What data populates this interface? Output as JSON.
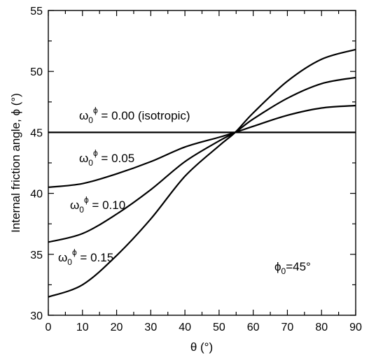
{
  "chart_data": {
    "type": "line",
    "xlabel": "θ (°)",
    "ylabel": "Internal friction angle, ϕ (°)",
    "xlim": [
      0,
      90
    ],
    "ylim": [
      30,
      55
    ],
    "xticks": [
      "0",
      "10",
      "20",
      "30",
      "40",
      "50",
      "60",
      "70",
      "80",
      "90"
    ],
    "yticks": [
      "30",
      "35",
      "40",
      "45",
      "50",
      "55"
    ],
    "grid": false,
    "legend": "none",
    "series": [
      {
        "name": "ω0ϕ = 0.00 (isotropic)",
        "x": [
          0,
          10,
          20,
          30,
          40,
          50,
          54.7,
          60,
          70,
          80,
          90
        ],
        "y": [
          45.0,
          45.0,
          45.0,
          45.0,
          45.0,
          45.0,
          45.0,
          45.0,
          45.0,
          45.0,
          45.0
        ]
      },
      {
        "name": "ω0ϕ = 0.05",
        "x": [
          0,
          10,
          20,
          30,
          40,
          50,
          54.7,
          60,
          70,
          80,
          90
        ],
        "y": [
          40.5,
          40.8,
          41.6,
          42.6,
          43.8,
          44.6,
          45.0,
          45.5,
          46.4,
          47.0,
          47.2
        ]
      },
      {
        "name": "ω0ϕ = 0.10",
        "x": [
          0,
          10,
          20,
          30,
          40,
          50,
          54.7,
          60,
          70,
          80,
          90
        ],
        "y": [
          36.0,
          36.7,
          38.3,
          40.3,
          42.6,
          44.3,
          45.0,
          46.1,
          47.8,
          49.0,
          49.5
        ]
      },
      {
        "name": "ω0ϕ = 0.15",
        "x": [
          0,
          10,
          20,
          30,
          40,
          50,
          54.7,
          60,
          70,
          80,
          90
        ],
        "y": [
          31.5,
          32.5,
          34.9,
          37.9,
          41.4,
          43.9,
          45.0,
          46.6,
          49.2,
          51.0,
          51.8
        ]
      }
    ],
    "annotations": {
      "iso": {
        "base": "ω",
        "sub": "0",
        "sup": "ϕ",
        "rest": " = 0.00 (isotropic)"
      },
      "s05": {
        "base": "ω",
        "sub": "0",
        "sup": "ϕ",
        "rest": " = 0.05"
      },
      "s10": {
        "base": "ω",
        "sub": "0",
        "sup": "ϕ",
        "rest": " = 0.10"
      },
      "s15": {
        "base": "ω",
        "sub": "0",
        "sup": "ϕ",
        "rest": " = 0.15"
      },
      "phi0": {
        "base": "ϕ",
        "sub": "0",
        "rest": "=45°"
      }
    }
  }
}
